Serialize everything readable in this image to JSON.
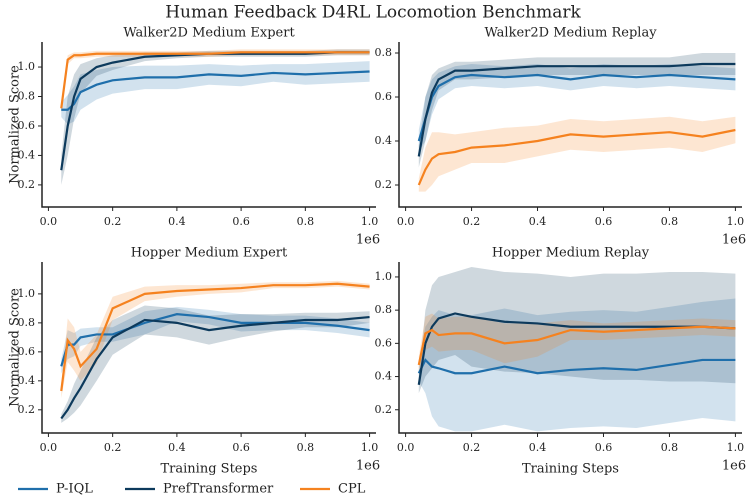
{
  "title": "Human Feedback D4RL Locomotion Benchmark",
  "chart_data": [
    {
      "type": "line",
      "title": "Walker2D Medium Expert",
      "ylabel": "Normalized Score",
      "x_offset_label": "1e6",
      "x": [
        0.04,
        0.06,
        0.08,
        0.1,
        0.15,
        0.2,
        0.3,
        0.4,
        0.5,
        0.6,
        0.7,
        0.8,
        0.9,
        1.0
      ],
      "xlim": [
        -0.02,
        1.02
      ],
      "xticks": [
        {
          "value": 0,
          "label": "0.0"
        },
        0.2,
        0.4,
        0.6,
        0.8,
        {
          "value": 1,
          "label": "1.0"
        }
      ],
      "ylim": [
        0.05,
        1.17
      ],
      "yticks": [
        0.2,
        0.4,
        0.6,
        0.8,
        {
          "value": 1,
          "label": "1.0"
        }
      ],
      "grid": false,
      "series": [
        {
          "name": "P-IQL",
          "color": "#1f6fab",
          "values": [
            0.71,
            0.71,
            0.75,
            0.83,
            0.88,
            0.91,
            0.93,
            0.93,
            0.95,
            0.94,
            0.96,
            0.95,
            0.96,
            0.97
          ],
          "std": [
            0.05,
            0.1,
            0.12,
            0.12,
            0.1,
            0.09,
            0.08,
            0.08,
            0.07,
            0.07,
            0.06,
            0.07,
            0.07,
            0.07
          ]
        },
        {
          "name": "PrefTransformer",
          "color": "#0d3a5c",
          "values": [
            0.3,
            0.6,
            0.8,
            0.92,
            1.0,
            1.03,
            1.07,
            1.08,
            1.09,
            1.09,
            1.09,
            1.09,
            1.1,
            1.1
          ],
          "std": [
            0.1,
            0.2,
            0.15,
            0.1,
            0.06,
            0.05,
            0.03,
            0.02,
            0.02,
            0.02,
            0.02,
            0.02,
            0.02,
            0.02
          ]
        },
        {
          "name": "CPL",
          "color": "#f5821f",
          "values": [
            0.72,
            1.05,
            1.08,
            1.08,
            1.09,
            1.09,
            1.09,
            1.09,
            1.09,
            1.1,
            1.1,
            1.1,
            1.1,
            1.1
          ],
          "std": [
            0.03,
            0.03,
            0.02,
            0.02,
            0.02,
            0.02,
            0.02,
            0.02,
            0.02,
            0.02,
            0.02,
            0.02,
            0.02,
            0.02
          ]
        }
      ]
    },
    {
      "type": "line",
      "title": "Walker2D Medium Replay",
      "x_offset_label": "1e6",
      "x": [
        0.04,
        0.06,
        0.08,
        0.1,
        0.15,
        0.2,
        0.3,
        0.4,
        0.5,
        0.6,
        0.7,
        0.8,
        0.9,
        1.0
      ],
      "xlim": [
        -0.02,
        1.02
      ],
      "xticks": [
        {
          "value": 0,
          "label": "0.0"
        },
        0.2,
        0.4,
        0.6,
        0.8,
        {
          "value": 1,
          "label": "1.0"
        }
      ],
      "ylim": [
        0.1,
        0.85
      ],
      "yticks": [
        0.2,
        0.4,
        0.6,
        0.8
      ],
      "grid": false,
      "series": [
        {
          "name": "P-IQL",
          "color": "#1f6fab",
          "values": [
            0.4,
            0.5,
            0.6,
            0.65,
            0.69,
            0.7,
            0.69,
            0.7,
            0.68,
            0.7,
            0.69,
            0.7,
            0.69,
            0.68
          ],
          "std": [
            0.05,
            0.1,
            0.08,
            0.06,
            0.05,
            0.05,
            0.05,
            0.05,
            0.05,
            0.05,
            0.05,
            0.05,
            0.05,
            0.05
          ]
        },
        {
          "name": "PrefTransformer",
          "color": "#0d3a5c",
          "values": [
            0.33,
            0.5,
            0.62,
            0.68,
            0.72,
            0.72,
            0.73,
            0.74,
            0.74,
            0.74,
            0.74,
            0.74,
            0.75,
            0.75
          ],
          "std": [
            0.05,
            0.1,
            0.08,
            0.05,
            0.04,
            0.04,
            0.04,
            0.04,
            0.04,
            0.04,
            0.04,
            0.04,
            0.05,
            0.05
          ]
        },
        {
          "name": "CPL",
          "color": "#f5821f",
          "values": [
            0.2,
            0.27,
            0.32,
            0.34,
            0.35,
            0.37,
            0.38,
            0.4,
            0.43,
            0.42,
            0.43,
            0.44,
            0.42,
            0.45
          ],
          "std": [
            0.03,
            0.1,
            0.12,
            0.1,
            0.08,
            0.07,
            0.08,
            0.07,
            0.07,
            0.07,
            0.07,
            0.07,
            0.07,
            0.06
          ]
        }
      ]
    },
    {
      "type": "line",
      "title": "Hopper Medium Expert",
      "ylabel": "Normalized Score",
      "xlabel": "Training Steps",
      "x_offset_label": "1e6",
      "x": [
        0.04,
        0.06,
        0.08,
        0.1,
        0.15,
        0.2,
        0.3,
        0.4,
        0.5,
        0.6,
        0.7,
        0.8,
        0.9,
        1.0
      ],
      "xlim": [
        -0.02,
        1.02
      ],
      "xticks": [
        {
          "value": 0,
          "label": "0.0"
        },
        0.2,
        0.4,
        0.6,
        0.8,
        {
          "value": 1,
          "label": "1.0"
        }
      ],
      "ylim": [
        0.04,
        1.22
      ],
      "yticks": [
        0.2,
        0.4,
        0.6,
        0.8,
        {
          "value": 1,
          "label": "1.0"
        }
      ],
      "grid": false,
      "series": [
        {
          "name": "P-IQL",
          "color": "#1f6fab",
          "values": [
            0.5,
            0.65,
            0.65,
            0.7,
            0.72,
            0.72,
            0.8,
            0.86,
            0.84,
            0.8,
            0.8,
            0.8,
            0.78,
            0.75
          ],
          "std": [
            0.05,
            0.1,
            0.08,
            0.06,
            0.05,
            0.05,
            0.08,
            0.05,
            0.05,
            0.06,
            0.05,
            0.05,
            0.05,
            0.05
          ]
        },
        {
          "name": "PrefTransformer",
          "color": "#0d3a5c",
          "values": [
            0.14,
            0.2,
            0.28,
            0.35,
            0.55,
            0.7,
            0.82,
            0.8,
            0.75,
            0.78,
            0.8,
            0.82,
            0.82,
            0.84
          ],
          "std": [
            0.03,
            0.06,
            0.1,
            0.12,
            0.15,
            0.12,
            0.1,
            0.1,
            0.1,
            0.08,
            0.06,
            0.05,
            0.05,
            0.04
          ]
        },
        {
          "name": "CPL",
          "color": "#f5821f",
          "values": [
            0.33,
            0.68,
            0.62,
            0.5,
            0.62,
            0.9,
            1.0,
            1.02,
            1.03,
            1.04,
            1.06,
            1.06,
            1.07,
            1.05
          ],
          "std": [
            0.05,
            0.15,
            0.15,
            0.1,
            0.1,
            0.08,
            0.05,
            0.04,
            0.03,
            0.03,
            0.02,
            0.02,
            0.02,
            0.02
          ]
        }
      ]
    },
    {
      "type": "line",
      "title": "Hopper Medium Replay",
      "xlabel": "Training Steps",
      "x_offset_label": "1e6",
      "x": [
        0.04,
        0.06,
        0.08,
        0.1,
        0.15,
        0.2,
        0.3,
        0.4,
        0.5,
        0.6,
        0.7,
        0.8,
        0.9,
        1.0
      ],
      "xlim": [
        -0.02,
        1.02
      ],
      "xticks": [
        {
          "value": 0,
          "label": "0.0"
        },
        0.2,
        0.4,
        0.6,
        0.8,
        {
          "value": 1,
          "label": "1.0"
        }
      ],
      "ylim": [
        0.06,
        1.09
      ],
      "yticks": [
        0.2,
        0.4,
        0.6,
        0.8,
        {
          "value": 1,
          "label": "1.0"
        }
      ],
      "grid": false,
      "series": [
        {
          "name": "P-IQL",
          "color": "#1f6fab",
          "values": [
            0.42,
            0.5,
            0.46,
            0.45,
            0.42,
            0.42,
            0.46,
            0.42,
            0.44,
            0.45,
            0.44,
            0.47,
            0.5,
            0.5
          ],
          "std": [
            0.05,
            0.2,
            0.3,
            0.35,
            0.35,
            0.35,
            0.35,
            0.35,
            0.35,
            0.35,
            0.35,
            0.35,
            0.35,
            0.37
          ]
        },
        {
          "name": "PrefTransformer",
          "color": "#0d3a5c",
          "values": [
            0.35,
            0.6,
            0.7,
            0.75,
            0.78,
            0.76,
            0.73,
            0.72,
            0.7,
            0.7,
            0.7,
            0.7,
            0.7,
            0.69
          ],
          "std": [
            0.05,
            0.2,
            0.25,
            0.25,
            0.25,
            0.3,
            0.3,
            0.3,
            0.3,
            0.32,
            0.32,
            0.33,
            0.33,
            0.33
          ]
        },
        {
          "name": "CPL",
          "color": "#f5821f",
          "values": [
            0.47,
            0.66,
            0.68,
            0.65,
            0.66,
            0.66,
            0.6,
            0.62,
            0.68,
            0.67,
            0.68,
            0.69,
            0.7,
            0.69
          ],
          "std": [
            0.05,
            0.1,
            0.1,
            0.1,
            0.1,
            0.1,
            0.12,
            0.1,
            0.06,
            0.05,
            0.05,
            0.05,
            0.05,
            0.05
          ]
        }
      ]
    }
  ]
}
